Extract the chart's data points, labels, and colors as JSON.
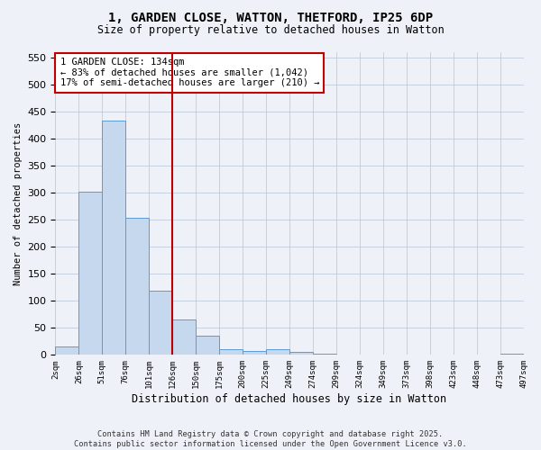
{
  "title_line1": "1, GARDEN CLOSE, WATTON, THETFORD, IP25 6DP",
  "title_line2": "Size of property relative to detached houses in Watton",
  "xlabel": "Distribution of detached houses by size in Watton",
  "ylabel": "Number of detached properties",
  "bar_values": [
    15,
    302,
    432,
    253,
    118,
    65,
    35,
    10,
    7,
    10,
    5,
    2,
    1,
    1,
    1,
    0,
    0,
    1,
    0,
    2
  ],
  "tick_labels": [
    "2sqm",
    "26sqm",
    "51sqm",
    "76sqm",
    "101sqm",
    "126sqm",
    "150sqm",
    "175sqm",
    "200sqm",
    "225sqm",
    "249sqm",
    "274sqm",
    "299sqm",
    "324sqm",
    "349sqm",
    "373sqm",
    "398sqm",
    "423sqm",
    "448sqm",
    "473sqm",
    "497sqm"
  ],
  "bar_color": "#c5d8ed",
  "bar_edgecolor": "#5b9bd5",
  "vline_x": 5,
  "vline_color": "#c00000",
  "annotation_text": "1 GARDEN CLOSE: 134sqm\n← 83% of detached houses are smaller (1,042)\n17% of semi-detached houses are larger (210) →",
  "annotation_box_color": "#c00000",
  "ylim": [
    0,
    560
  ],
  "yticks": [
    0,
    50,
    100,
    150,
    200,
    250,
    300,
    350,
    400,
    450,
    500,
    550
  ],
  "footer_line1": "Contains HM Land Registry data © Crown copyright and database right 2025.",
  "footer_line2": "Contains public sector information licensed under the Open Government Licence v3.0.",
  "bg_color": "#eef2f8",
  "plot_bg_color": "#eef2f8"
}
